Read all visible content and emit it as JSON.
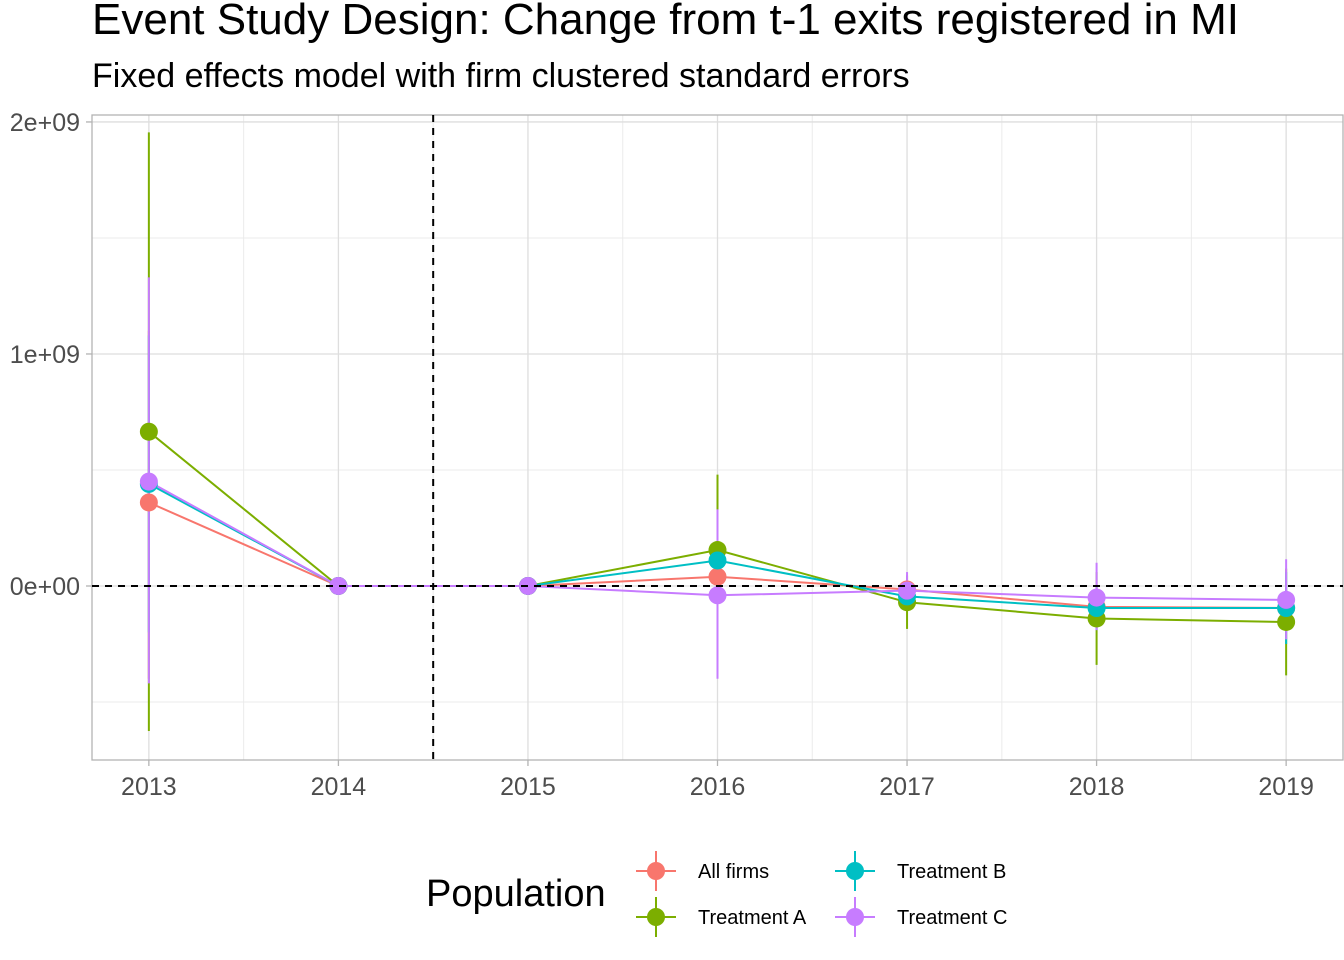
{
  "title": "Event Study Design: Change from t-1 exits registered in MI",
  "subtitle": "Fixed effects model with firm clustered standard errors",
  "legend": {
    "title": "Population",
    "placement": "bottom"
  },
  "chart_data": {
    "type": "line",
    "x": [
      2013,
      2014,
      2015,
      2016,
      2017,
      2018,
      2019
    ],
    "x_ticks": [
      "2013",
      "2014",
      "2015",
      "2016",
      "2017",
      "2018",
      "2019"
    ],
    "y_ticks": [
      {
        "value": 0,
        "label": "0e+00"
      },
      {
        "value": 1000000000,
        "label": "1e+09"
      },
      {
        "value": 2000000000,
        "label": "2e+09"
      }
    ],
    "xlim": [
      2012.7,
      2019.3
    ],
    "ylim": [
      -750000000,
      2030000000
    ],
    "grid": true,
    "reference_lines": {
      "vertical_x": 2014.5,
      "horizontal_y": 0
    },
    "series": [
      {
        "name": "All firms",
        "color": "#F8766D",
        "values": [
          360000000,
          0,
          0,
          40000000,
          -15000000,
          -90000000,
          -95000000
        ],
        "lower": [
          -400000000,
          0,
          0,
          -30000000,
          -50000000,
          -160000000,
          -170000000
        ],
        "upper": [
          1100000000,
          0,
          0,
          110000000,
          20000000,
          -20000000,
          -20000000
        ]
      },
      {
        "name": "Treatment A",
        "color": "#7CAE00",
        "values": [
          665000000,
          0,
          0,
          155000000,
          -70000000,
          -140000000,
          -155000000
        ],
        "lower": [
          -625000000,
          0,
          0,
          -170000000,
          -185000000,
          -340000000,
          -385000000
        ],
        "upper": [
          1955000000,
          0,
          0,
          480000000,
          45000000,
          60000000,
          75000000
        ]
      },
      {
        "name": "Treatment B",
        "color": "#00BFC4",
        "values": [
          440000000,
          0,
          0,
          110000000,
          -45000000,
          -95000000,
          -95000000
        ],
        "lower": [
          -200000000,
          0,
          0,
          -20000000,
          -90000000,
          -190000000,
          -250000000
        ],
        "upper": [
          1080000000,
          0,
          0,
          240000000,
          0,
          0,
          60000000
        ]
      },
      {
        "name": "Treatment C",
        "color": "#C77CFF",
        "values": [
          450000000,
          0,
          0,
          -40000000,
          -20000000,
          -50000000,
          -60000000
        ],
        "lower": [
          -420000000,
          0,
          0,
          -400000000,
          -90000000,
          -190000000,
          -230000000
        ],
        "upper": [
          1330000000,
          0,
          0,
          330000000,
          60000000,
          100000000,
          115000000
        ]
      }
    ]
  }
}
